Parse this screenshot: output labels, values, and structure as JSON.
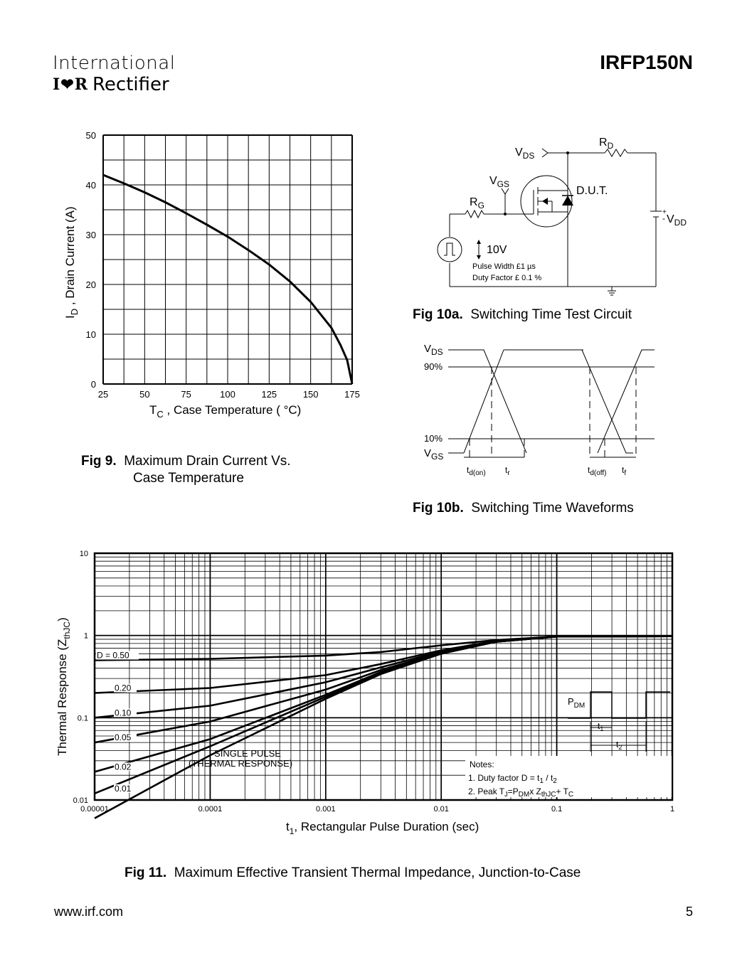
{
  "header": {
    "brand_line1": "International",
    "brand_logo": "I❤R",
    "brand_line2": "Rectifier",
    "part_number": "IRFP150N"
  },
  "fig9": {
    "caption_label": "Fig 9.",
    "caption_line1": "Maximum Drain Current Vs.",
    "caption_line2": "Case Temperature",
    "ylabel_main": "I",
    "ylabel_sub": "D",
    "ylabel_rest": " , Drain Current (A)",
    "xlabel_main": "T",
    "xlabel_sub": "C",
    "xlabel_rest": " , Case Temperature  ( °C)",
    "chart_data": {
      "type": "line",
      "x_ticks": [
        "25",
        "50",
        "75",
        "100",
        "125",
        "150",
        "175"
      ],
      "y_ticks": [
        "0",
        "10",
        "20",
        "30",
        "40",
        "50"
      ],
      "xlim": [
        25,
        175
      ],
      "ylim": [
        0,
        50
      ],
      "series": [
        {
          "name": "ID max",
          "x": [
            25,
            37.5,
            50,
            62.5,
            75,
            87.5,
            100,
            112.5,
            125,
            137.5,
            150,
            162.5,
            168,
            172,
            175
          ],
          "y": [
            42,
            40.3,
            38.5,
            36.5,
            34.3,
            32,
            29.6,
            26.9,
            24,
            20.6,
            16.5,
            11.3,
            7.8,
            4.8,
            0
          ]
        }
      ]
    }
  },
  "fig10a": {
    "caption_label": "Fig 10a.",
    "caption_text": "Switching Time Test Circuit",
    "rd": "R",
    "rd_sub": "D",
    "vds": "V",
    "vds_sub": "DS",
    "vgs": "V",
    "vgs_sub": "GS",
    "rg": "R",
    "rg_sub": "G",
    "dut": "D.U.T.",
    "vdd_plus": "+",
    "vdd_minus": "-",
    "vdd": "V",
    "vdd_sub": "DD",
    "pulse_v": "10V",
    "pulse_width": "Pulse Width £1 µs",
    "duty_factor": "Duty Factor £ 0.1 %"
  },
  "fig10b": {
    "caption_label": "Fig 10b.",
    "caption_text": "Switching Time Waveforms",
    "vds": "V",
    "vds_sub": "DS",
    "vgs": "V",
    "vgs_sub": "GS",
    "p90": "90%",
    "p10": "10%",
    "tdon": "t",
    "tdon_sub": "d(on)",
    "tr": "t",
    "tr_sub": "r",
    "tdoff": "t",
    "tdoff_sub": "d(off)",
    "tf": "t",
    "tf_sub": "f"
  },
  "fig11": {
    "caption_label": "Fig 11.",
    "caption_text": "Maximum Effective Transient Thermal Impedance, Junction-to-Case",
    "ylabel": "Thermal Response (Z",
    "ylabel_sub": "thJC",
    "ylabel_end": ")",
    "xlabel": "t",
    "xlabel_sub": "1",
    "xlabel_rest": ", Rectangular Pulse Duration (sec)",
    "single_pulse_1": "SINGLE PULSE",
    "single_pulse_2": "(THERMAL RESPONSE)",
    "notes_title": "Notes:",
    "note1": "1. Duty factor D =  t",
    "note1_b": " / t",
    "note2": "2. Peak T",
    "note2_b": "=P",
    "note2_c": "x  Z",
    "note2_d": "+ T",
    "pdm": "P",
    "pdm_sub": "DM",
    "t1": "t",
    "t1_sub": "1",
    "t2": "t",
    "t2_sub": "2",
    "chart_data": {
      "type": "line",
      "xscale": "log",
      "yscale": "log",
      "xlim": [
        1e-05,
        1
      ],
      "ylim": [
        0.01,
        10
      ],
      "x_ticks": [
        "0.00001",
        "0.0001",
        "0.001",
        "0.01",
        "0.1",
        "1"
      ],
      "y_ticks": [
        "0.01",
        "0.1",
        "1",
        "10"
      ],
      "x": [
        1e-05,
        0.0001,
        0.001,
        0.003,
        0.01,
        0.03,
        0.1,
        1
      ],
      "series": [
        {
          "name": "D = 0.50",
          "label": "D = 0.50",
          "values": [
            0.5,
            0.52,
            0.57,
            0.63,
            0.76,
            0.88,
            0.97,
            0.98
          ]
        },
        {
          "name": "0.20",
          "label": "0.20",
          "values": [
            0.2,
            0.23,
            0.33,
            0.45,
            0.66,
            0.86,
            0.97,
            0.98
          ]
        },
        {
          "name": "0.10",
          "label": "0.10",
          "values": [
            0.1,
            0.14,
            0.27,
            0.41,
            0.64,
            0.85,
            0.97,
            0.98
          ]
        },
        {
          "name": "0.05",
          "label": "0.05",
          "values": [
            0.05,
            0.09,
            0.22,
            0.38,
            0.62,
            0.84,
            0.97,
            0.98
          ]
        },
        {
          "name": "0.02",
          "label": "0.02",
          "values": [
            0.022,
            0.055,
            0.19,
            0.36,
            0.61,
            0.84,
            0.97,
            0.98
          ]
        },
        {
          "name": "0.01",
          "label": "0.01",
          "values": [
            0.012,
            0.045,
            0.18,
            0.35,
            0.6,
            0.84,
            0.97,
            0.98
          ]
        },
        {
          "name": "SINGLE PULSE",
          "label": "",
          "values": [
            0.006,
            0.035,
            0.17,
            0.34,
            0.6,
            0.84,
            0.97,
            0.98
          ]
        }
      ]
    }
  },
  "footer": {
    "url": "www.irf.com",
    "page": "5"
  }
}
